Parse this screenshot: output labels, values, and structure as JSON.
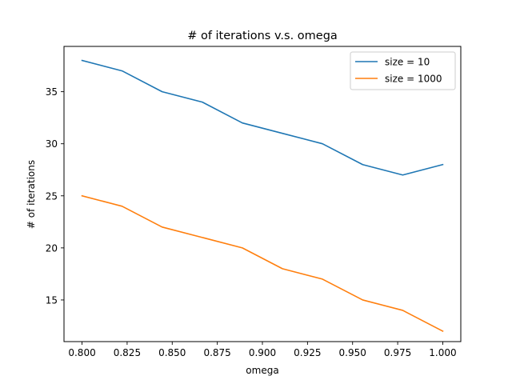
{
  "chart_data": {
    "type": "line",
    "title": "# of iterations  v.s.  omega",
    "xlabel": "omega",
    "ylabel": "# of iterations",
    "xlim": [
      0.79,
      1.01
    ],
    "ylim": [
      11.0,
      39.35
    ],
    "xticks": [
      0.8,
      0.825,
      0.85,
      0.875,
      0.9,
      0.925,
      0.95,
      0.975,
      1.0
    ],
    "xtick_labels": [
      "0.800",
      "0.825",
      "0.850",
      "0.875",
      "0.900",
      "0.925",
      "0.950",
      "0.975",
      "1.000"
    ],
    "yticks": [
      15,
      20,
      25,
      30,
      35
    ],
    "ytick_labels": [
      "15",
      "20",
      "25",
      "30",
      "35"
    ],
    "grid": false,
    "legend_position": "top-right",
    "x": [
      0.8,
      0.8222,
      0.8444,
      0.8667,
      0.8889,
      0.9111,
      0.9333,
      0.9556,
      0.9778,
      1.0
    ],
    "series": [
      {
        "name": "size = 10",
        "color": "#1f77b4",
        "values": [
          38,
          37,
          35,
          34,
          32,
          31,
          30,
          28,
          27,
          28
        ]
      },
      {
        "name": "size = 1000",
        "color": "#ff7f0e",
        "values": [
          25,
          24,
          22,
          21,
          20,
          18,
          17,
          15,
          14,
          12
        ]
      }
    ]
  }
}
